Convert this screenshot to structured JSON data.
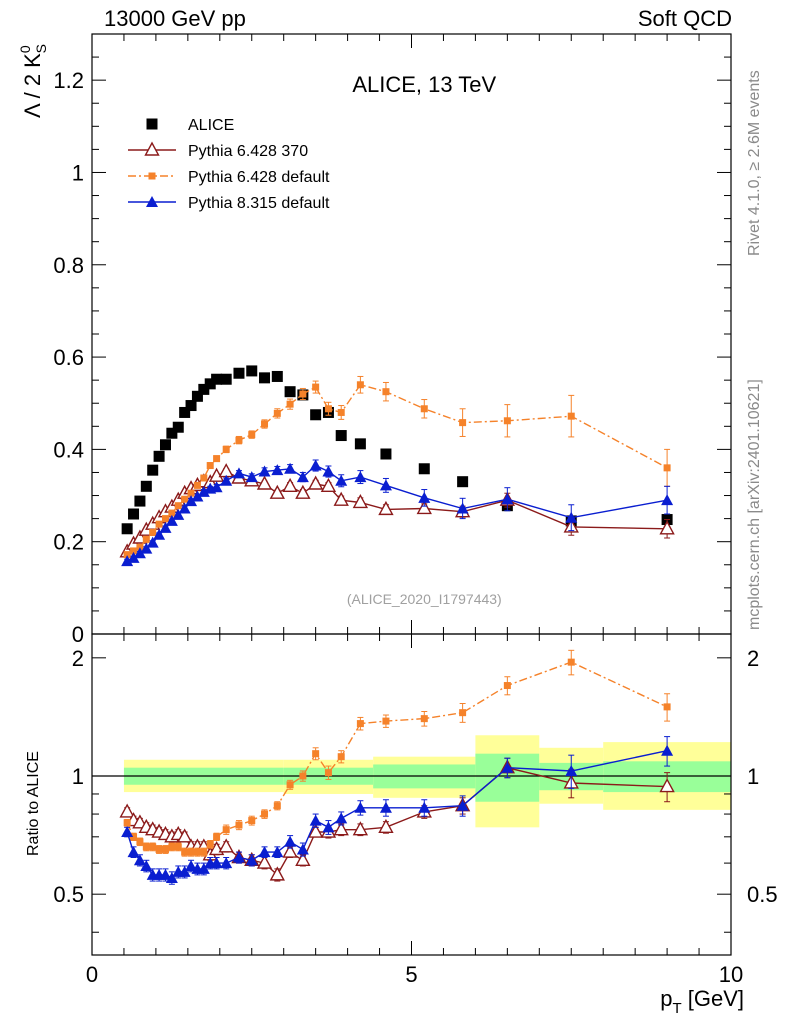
{
  "header": {
    "left": "13000 GeV pp",
    "right": "Soft QCD"
  },
  "side_texts": {
    "rivet": "Rivet 4.1.0, ≥ 2.6M events",
    "mcplots": "mcplots.cern.ch [arXiv:2401.10621]"
  },
  "colors": {
    "alice": "#000000",
    "p6_370": "#8b1a1a",
    "p6_default": "#f5822a",
    "p8": "#0a1ed0",
    "band_yellow": "#ffff99",
    "band_green": "#99ff99"
  },
  "chart_data": [
    {
      "type": "scatter",
      "title": "ALICE, 13 TeV",
      "watermark": "(ALICE_2020_I1797443)",
      "ylabel": "Λ / 2 K",
      "ylabel_super": "0",
      "ylabel_sub": "S",
      "xlim": [
        0,
        10
      ],
      "ylim": [
        0,
        1.3
      ],
      "yticks": [
        0,
        0.2,
        0.4,
        0.6,
        0.8,
        1,
        1.2
      ],
      "ytick_labels": [
        "0",
        "0.2",
        "0.4",
        "0.6",
        "0.8",
        "1",
        "1.2"
      ],
      "legend_position": "top-left",
      "series": [
        {
          "name": "ALICE",
          "marker": "square",
          "x": [
            0.55,
            0.65,
            0.75,
            0.85,
            0.95,
            1.05,
            1.15,
            1.25,
            1.35,
            1.45,
            1.55,
            1.65,
            1.75,
            1.85,
            1.95,
            2.1,
            2.3,
            2.5,
            2.7,
            2.9,
            3.1,
            3.3,
            3.5,
            3.7,
            3.9,
            4.2,
            4.6,
            5.2,
            5.8,
            6.5,
            7.5,
            9.0
          ],
          "y": [
            0.228,
            0.26,
            0.288,
            0.32,
            0.355,
            0.385,
            0.41,
            0.435,
            0.448,
            0.48,
            0.495,
            0.515,
            0.53,
            0.542,
            0.552,
            0.552,
            0.565,
            0.57,
            0.555,
            0.558,
            0.525,
            0.518,
            0.475,
            0.48,
            0.43,
            0.412,
            0.39,
            0.358,
            0.33,
            0.278,
            0.245,
            0.248
          ]
        },
        {
          "name": "Pythia 6.428 370",
          "marker": "open-triangle",
          "line": "solid",
          "x": [
            0.55,
            0.65,
            0.75,
            0.85,
            0.95,
            1.05,
            1.15,
            1.25,
            1.35,
            1.45,
            1.55,
            1.65,
            1.75,
            1.85,
            1.95,
            2.1,
            2.3,
            2.5,
            2.7,
            2.9,
            3.1,
            3.3,
            3.5,
            3.7,
            3.9,
            4.2,
            4.6,
            5.2,
            5.8,
            6.5,
            7.5,
            9.0
          ],
          "y": [
            0.178,
            0.195,
            0.208,
            0.225,
            0.238,
            0.252,
            0.265,
            0.275,
            0.29,
            0.305,
            0.315,
            0.322,
            0.33,
            0.328,
            0.342,
            0.352,
            0.338,
            0.332,
            0.325,
            0.305,
            0.32,
            0.305,
            0.325,
            0.32,
            0.29,
            0.285,
            0.27,
            0.272,
            0.265,
            0.29,
            0.232,
            0.228
          ],
          "err": [
            0.004,
            0.004,
            0.004,
            0.004,
            0.004,
            0.004,
            0.004,
            0.004,
            0.005,
            0.005,
            0.005,
            0.005,
            0.005,
            0.005,
            0.006,
            0.006,
            0.006,
            0.006,
            0.006,
            0.007,
            0.008,
            0.008,
            0.008,
            0.008,
            0.009,
            0.01,
            0.01,
            0.01,
            0.012,
            0.015,
            0.018,
            0.02
          ]
        },
        {
          "name": "Pythia 6.428 default",
          "marker": "square-small",
          "line": "dashdot",
          "x": [
            0.55,
            0.65,
            0.75,
            0.85,
            0.95,
            1.05,
            1.15,
            1.25,
            1.35,
            1.45,
            1.55,
            1.65,
            1.75,
            1.85,
            1.95,
            2.1,
            2.3,
            2.5,
            2.7,
            2.9,
            3.1,
            3.3,
            3.5,
            3.7,
            3.9,
            4.2,
            4.6,
            5.2,
            5.8,
            6.5,
            7.5,
            9.0
          ],
          "y": [
            0.172,
            0.18,
            0.188,
            0.205,
            0.22,
            0.238,
            0.25,
            0.262,
            0.278,
            0.292,
            0.305,
            0.322,
            0.338,
            0.365,
            0.38,
            0.4,
            0.42,
            0.432,
            0.455,
            0.478,
            0.498,
            0.52,
            0.535,
            0.488,
            0.48,
            0.54,
            0.525,
            0.488,
            0.458,
            0.462,
            0.472,
            0.36
          ],
          "err": [
            0.004,
            0.004,
            0.004,
            0.004,
            0.004,
            0.004,
            0.004,
            0.005,
            0.005,
            0.005,
            0.005,
            0.005,
            0.006,
            0.006,
            0.006,
            0.007,
            0.008,
            0.008,
            0.009,
            0.01,
            0.011,
            0.012,
            0.013,
            0.014,
            0.015,
            0.018,
            0.02,
            0.02,
            0.03,
            0.035,
            0.045,
            0.04
          ]
        },
        {
          "name": "Pythia 8.315 default",
          "marker": "triangle",
          "line": "solid",
          "x": [
            0.55,
            0.65,
            0.75,
            0.85,
            0.95,
            1.05,
            1.15,
            1.25,
            1.35,
            1.45,
            1.55,
            1.65,
            1.75,
            1.85,
            1.95,
            2.1,
            2.3,
            2.5,
            2.7,
            2.9,
            3.1,
            3.3,
            3.5,
            3.7,
            3.9,
            4.2,
            4.6,
            5.2,
            5.8,
            6.5,
            7.5,
            9.0
          ],
          "y": [
            0.158,
            0.165,
            0.175,
            0.185,
            0.198,
            0.215,
            0.23,
            0.245,
            0.258,
            0.272,
            0.288,
            0.298,
            0.308,
            0.315,
            0.318,
            0.332,
            0.348,
            0.34,
            0.352,
            0.355,
            0.358,
            0.34,
            0.365,
            0.352,
            0.332,
            0.34,
            0.322,
            0.295,
            0.272,
            0.292,
            0.252,
            0.29
          ],
          "err": [
            0.004,
            0.004,
            0.004,
            0.004,
            0.004,
            0.004,
            0.004,
            0.004,
            0.005,
            0.005,
            0.005,
            0.005,
            0.005,
            0.005,
            0.006,
            0.006,
            0.006,
            0.007,
            0.008,
            0.008,
            0.009,
            0.01,
            0.012,
            0.012,
            0.013,
            0.014,
            0.015,
            0.018,
            0.022,
            0.025,
            0.028,
            0.03
          ]
        }
      ]
    },
    {
      "type": "scatter",
      "ylabel": "Ratio to ALICE",
      "xlabel": "p",
      "xlabel_sub": "T",
      "xlabel_unit": " [GeV]",
      "xlim": [
        0,
        10
      ],
      "ylim": [
        0.35,
        2.3
      ],
      "xticks": [
        0,
        5,
        10
      ],
      "xtick_labels": [
        "0",
        "5",
        "10"
      ],
      "yticks": [
        0.5,
        1,
        2
      ],
      "ytick_labels": [
        "0.5",
        "1",
        "2"
      ],
      "bands": [
        {
          "x": [
            0.5,
            3.0
          ],
          "yellow": [
            0.91,
            1.1
          ],
          "green": [
            0.95,
            1.05
          ]
        },
        {
          "x": [
            3.0,
            4.4
          ],
          "yellow": [
            0.9,
            1.1
          ],
          "green": [
            0.95,
            1.05
          ]
        },
        {
          "x": [
            4.4,
            6.0
          ],
          "yellow": [
            0.88,
            1.12
          ],
          "green": [
            0.93,
            1.07
          ]
        },
        {
          "x": [
            6.0,
            7.0
          ],
          "yellow": [
            0.74,
            1.27
          ],
          "green": [
            0.86,
            1.14
          ]
        },
        {
          "x": [
            7.0,
            8.0
          ],
          "yellow": [
            0.85,
            1.18
          ],
          "green": [
            0.92,
            1.08
          ]
        },
        {
          "x": [
            8.0,
            10.0
          ],
          "yellow": [
            0.82,
            1.22
          ],
          "green": [
            0.91,
            1.09
          ]
        }
      ],
      "series": [
        {
          "name": "Pythia 6.428 370",
          "marker": "open-triangle",
          "line": "solid",
          "x": [
            0.55,
            0.65,
            0.75,
            0.85,
            0.95,
            1.05,
            1.15,
            1.25,
            1.35,
            1.45,
            1.55,
            1.65,
            1.75,
            1.85,
            1.95,
            2.1,
            2.3,
            2.5,
            2.7,
            2.9,
            3.1,
            3.3,
            3.5,
            3.7,
            3.9,
            4.2,
            4.6,
            5.2,
            5.8,
            6.5,
            7.5,
            9.0
          ],
          "y": [
            0.81,
            0.77,
            0.76,
            0.74,
            0.73,
            0.72,
            0.71,
            0.7,
            0.71,
            0.7,
            0.66,
            0.66,
            0.66,
            0.63,
            0.65,
            0.66,
            0.62,
            0.61,
            0.6,
            0.56,
            0.64,
            0.61,
            0.72,
            0.72,
            0.73,
            0.73,
            0.74,
            0.81,
            0.84,
            1.05,
            0.96,
            0.94
          ],
          "err": [
            0.02,
            0.02,
            0.02,
            0.02,
            0.02,
            0.02,
            0.02,
            0.02,
            0.02,
            0.02,
            0.02,
            0.02,
            0.02,
            0.02,
            0.02,
            0.02,
            0.02,
            0.02,
            0.02,
            0.02,
            0.02,
            0.02,
            0.02,
            0.025,
            0.025,
            0.025,
            0.025,
            0.03,
            0.04,
            0.06,
            0.08,
            0.08
          ]
        },
        {
          "name": "Pythia 6.428 default",
          "marker": "square-small",
          "line": "dashdot",
          "x": [
            0.55,
            0.65,
            0.75,
            0.85,
            0.95,
            1.05,
            1.15,
            1.25,
            1.35,
            1.45,
            1.55,
            1.65,
            1.75,
            1.85,
            1.95,
            2.1,
            2.3,
            2.5,
            2.7,
            2.9,
            3.1,
            3.3,
            3.5,
            3.7,
            3.9,
            4.2,
            4.6,
            5.2,
            5.8,
            6.5,
            7.5,
            9.0
          ],
          "y": [
            0.76,
            0.7,
            0.68,
            0.66,
            0.66,
            0.65,
            0.65,
            0.66,
            0.66,
            0.64,
            0.64,
            0.64,
            0.64,
            0.67,
            0.7,
            0.73,
            0.75,
            0.77,
            0.8,
            0.84,
            0.95,
            1.0,
            1.14,
            1.02,
            1.12,
            1.36,
            1.38,
            1.4,
            1.45,
            1.7,
            1.95,
            1.5
          ],
          "err": [
            0.015,
            0.015,
            0.015,
            0.015,
            0.015,
            0.015,
            0.015,
            0.015,
            0.015,
            0.015,
            0.015,
            0.015,
            0.015,
            0.015,
            0.015,
            0.02,
            0.02,
            0.02,
            0.02,
            0.02,
            0.025,
            0.03,
            0.04,
            0.04,
            0.04,
            0.05,
            0.05,
            0.06,
            0.08,
            0.09,
            0.14,
            0.12
          ]
        },
        {
          "name": "Pythia 8.315 default",
          "marker": "triangle",
          "line": "solid",
          "x": [
            0.55,
            0.65,
            0.75,
            0.85,
            0.95,
            1.05,
            1.15,
            1.25,
            1.35,
            1.45,
            1.55,
            1.65,
            1.75,
            1.85,
            1.95,
            2.1,
            2.3,
            2.5,
            2.7,
            2.9,
            3.1,
            3.3,
            3.5,
            3.7,
            3.9,
            4.2,
            4.6,
            5.2,
            5.8,
            6.5,
            7.5,
            9.0
          ],
          "y": [
            0.72,
            0.64,
            0.61,
            0.59,
            0.56,
            0.56,
            0.56,
            0.55,
            0.57,
            0.57,
            0.59,
            0.58,
            0.58,
            0.6,
            0.6,
            0.6,
            0.62,
            0.61,
            0.64,
            0.64,
            0.68,
            0.65,
            0.77,
            0.74,
            0.78,
            0.83,
            0.83,
            0.83,
            0.84,
            1.05,
            1.03,
            1.16
          ],
          "err": [
            0.02,
            0.02,
            0.02,
            0.02,
            0.02,
            0.02,
            0.02,
            0.02,
            0.02,
            0.02,
            0.02,
            0.02,
            0.02,
            0.02,
            0.02,
            0.02,
            0.02,
            0.02,
            0.02,
            0.02,
            0.025,
            0.025,
            0.03,
            0.03,
            0.03,
            0.035,
            0.04,
            0.04,
            0.05,
            0.06,
            0.1,
            0.1
          ]
        }
      ]
    }
  ]
}
